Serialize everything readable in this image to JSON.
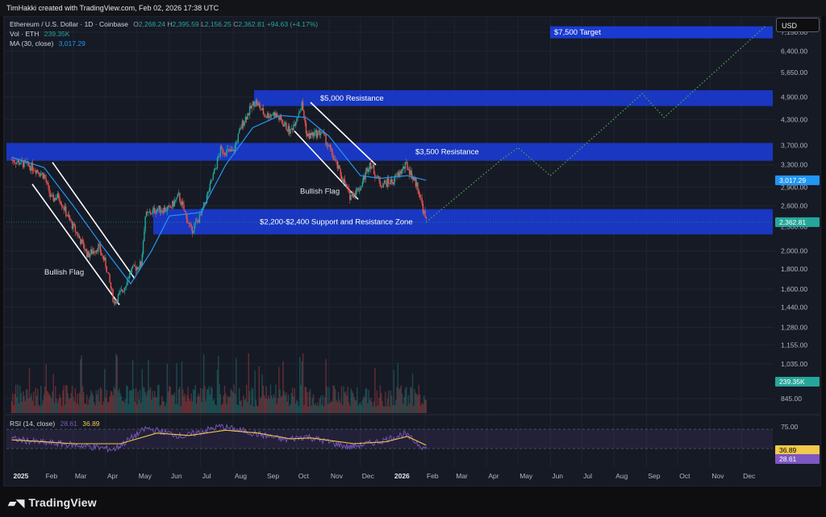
{
  "header": {
    "created_by": "TimHakki created with TradingView.com, Feb 02, 2026 17:38 UTC"
  },
  "legend": {
    "symbol": "Ethereum / U.S. Dollar · 1D · Coinbase",
    "open_label": "O",
    "open": "2,268.24",
    "high_label": "H",
    "high": "2,395.59",
    "low_label": "L",
    "low": "2,156.25",
    "close_label": "C",
    "close": "2,362.81",
    "change": "+94.63 (+4.17%)",
    "vol_label": "Vol · ETH",
    "vol": "239.35K",
    "ma_label": "MA (30, close)",
    "ma": "3,017.29"
  },
  "rsi_legend": {
    "label": "RSI (14, close)",
    "rsi": "28.61",
    "rsi_ma": "36.89"
  },
  "currency_button": "USD",
  "brand": "TradingView",
  "colors": {
    "up": "#26a69a",
    "down": "#ef5350",
    "zone": "#1a3bd1",
    "ma": "#2196f3",
    "target_path": "#4caf50",
    "rsi": "#7e57c2",
    "rsi_ma": "#f2c94c",
    "bg": "#161a25"
  },
  "chart_data": {
    "type": "candlestick",
    "symbol": "ETH/USD",
    "timeframe": "1D",
    "y_scale": "log",
    "ylim": [
      720,
      7600
    ],
    "price_ticks": [
      7150,
      6400,
      5650,
      4900,
      4300,
      3700,
      3300,
      2900,
      2600,
      2300,
      2000,
      1800,
      1600,
      1440,
      1280,
      1155,
      1035,
      845
    ],
    "price_tick_labels": [
      "7,150.00",
      "6,400.00",
      "5,650.00",
      "4,900.00",
      "4,300.00",
      "3,700.00",
      "3,300.00",
      "2,900.00",
      "2,600.00",
      "2,300.00",
      "2,000.00",
      "1,800.00",
      "1,600.00",
      "1,440.00",
      "1,280.00",
      "1,155.00",
      "1,035.00",
      "845.00"
    ],
    "x_labels": [
      "2025",
      "Feb",
      "Mar",
      "Apr",
      "May",
      "Jun",
      "Jul",
      "Aug",
      "Sep",
      "Oct",
      "Nov",
      "Dec",
      "2026",
      "Feb",
      "Mar",
      "Apr",
      "May",
      "Jun",
      "Jul",
      "Aug",
      "Sep",
      "Oct",
      "Nov",
      "Dec"
    ],
    "price_path": [
      {
        "date": "2025-01-01",
        "price": 3400
      },
      {
        "date": "2025-01-08",
        "price": 3350
      },
      {
        "date": "2025-01-15",
        "price": 3300
      },
      {
        "date": "2025-01-22",
        "price": 3250
      },
      {
        "date": "2025-02-01",
        "price": 3100
      },
      {
        "date": "2025-02-08",
        "price": 2700
      },
      {
        "date": "2025-02-15",
        "price": 2750
      },
      {
        "date": "2025-02-25",
        "price": 2400
      },
      {
        "date": "2025-03-05",
        "price": 2200
      },
      {
        "date": "2025-03-15",
        "price": 1950
      },
      {
        "date": "2025-03-25",
        "price": 2050
      },
      {
        "date": "2025-04-01",
        "price": 1850
      },
      {
        "date": "2025-04-09",
        "price": 1480
      },
      {
        "date": "2025-04-18",
        "price": 1600
      },
      {
        "date": "2025-04-25",
        "price": 1780
      },
      {
        "date": "2025-05-05",
        "price": 1850
      },
      {
        "date": "2025-05-09",
        "price": 2450
      },
      {
        "date": "2025-05-20",
        "price": 2550
      },
      {
        "date": "2025-06-01",
        "price": 2550
      },
      {
        "date": "2025-06-10",
        "price": 2750
      },
      {
        "date": "2025-06-22",
        "price": 2250
      },
      {
        "date": "2025-07-01",
        "price": 2450
      },
      {
        "date": "2025-07-10",
        "price": 2900
      },
      {
        "date": "2025-07-20",
        "price": 3600
      },
      {
        "date": "2025-08-01",
        "price": 3550
      },
      {
        "date": "2025-08-10",
        "price": 4200
      },
      {
        "date": "2025-08-22",
        "price": 4800
      },
      {
        "date": "2025-09-01",
        "price": 4400
      },
      {
        "date": "2025-09-10",
        "price": 4450
      },
      {
        "date": "2025-09-25",
        "price": 4000
      },
      {
        "date": "2025-10-06",
        "price": 4700
      },
      {
        "date": "2025-10-11",
        "price": 3900
      },
      {
        "date": "2025-10-25",
        "price": 4000
      },
      {
        "date": "2025-11-04",
        "price": 3500
      },
      {
        "date": "2025-11-21",
        "price": 2750
      },
      {
        "date": "2025-12-01",
        "price": 2900
      },
      {
        "date": "2025-12-10",
        "price": 3350
      },
      {
        "date": "2025-12-20",
        "price": 2950
      },
      {
        "date": "2026-01-01",
        "price": 3000
      },
      {
        "date": "2026-01-14",
        "price": 3300
      },
      {
        "date": "2026-01-25",
        "price": 2900
      },
      {
        "date": "2026-02-02",
        "price": 2362.81
      }
    ],
    "ma30_path": [
      {
        "date": "2025-01-01",
        "price": 3450
      },
      {
        "date": "2025-02-01",
        "price": 3250
      },
      {
        "date": "2025-03-01",
        "price": 2600
      },
      {
        "date": "2025-04-01",
        "price": 2000
      },
      {
        "date": "2025-04-25",
        "price": 1650
      },
      {
        "date": "2025-05-15",
        "price": 2000
      },
      {
        "date": "2025-06-01",
        "price": 2450
      },
      {
        "date": "2025-07-01",
        "price": 2500
      },
      {
        "date": "2025-07-25",
        "price": 3300
      },
      {
        "date": "2025-08-20",
        "price": 4100
      },
      {
        "date": "2025-09-15",
        "price": 4400
      },
      {
        "date": "2025-10-10",
        "price": 4350
      },
      {
        "date": "2025-11-01",
        "price": 3900
      },
      {
        "date": "2025-12-01",
        "price": 3100
      },
      {
        "date": "2025-12-20",
        "price": 3050
      },
      {
        "date": "2026-01-15",
        "price": 3100
      },
      {
        "date": "2026-02-02",
        "price": 3017.29
      }
    ],
    "resistance_zones": [
      {
        "label": "$5,000 Resistance",
        "low": 4650,
        "high": 5100
      },
      {
        "label": "$3,500 Resistance",
        "low": 3380,
        "high": 3750
      },
      {
        "label": "$2,200-$2,400 Support and Resistance Zone",
        "low": 2200,
        "high": 2550
      }
    ],
    "target_zone": {
      "label": "$7,500 Target",
      "low": 6900,
      "high": 7400
    },
    "projection_path": [
      {
        "date": "2026-02-02",
        "price": 2362.81
      },
      {
        "date": "2026-04-15",
        "price": 3400
      },
      {
        "date": "2026-05-01",
        "price": 3650
      },
      {
        "date": "2026-06-01",
        "price": 3100
      },
      {
        "date": "2026-08-28",
        "price": 5000
      },
      {
        "date": "2026-09-18",
        "price": 4350
      },
      {
        "date": "2026-12-25",
        "price": 7450
      }
    ],
    "annotations": [
      {
        "text": "Bullish Flag"
      },
      {
        "text": "Bullish Flag"
      }
    ],
    "price_labels": [
      {
        "name": "ma30",
        "value": 3017.29,
        "text": "3,017.29"
      },
      {
        "name": "close",
        "value": 2362.81,
        "text": "2,362.81"
      },
      {
        "name": "volume",
        "value": 239.35,
        "text": "239.35K"
      }
    ],
    "rsi": {
      "period": 14,
      "current": 28.61,
      "ma_current": 36.89,
      "upper_band": 70,
      "lower_band": 30,
      "tick_labels": [
        "75.00"
      ],
      "path": [
        {
          "date": "2025-01-01",
          "value": 50
        },
        {
          "date": "2025-02-01",
          "value": 42
        },
        {
          "date": "2025-03-01",
          "value": 38
        },
        {
          "date": "2025-04-09",
          "value": 28
        },
        {
          "date": "2025-05-10",
          "value": 72
        },
        {
          "date": "2025-06-15",
          "value": 55
        },
        {
          "date": "2025-07-20",
          "value": 76
        },
        {
          "date": "2025-08-20",
          "value": 62
        },
        {
          "date": "2025-09-20",
          "value": 48
        },
        {
          "date": "2025-10-10",
          "value": 55
        },
        {
          "date": "2025-11-20",
          "value": 33
        },
        {
          "date": "2025-12-20",
          "value": 45
        },
        {
          "date": "2026-01-12",
          "value": 60
        },
        {
          "date": "2026-02-02",
          "value": 28.61
        }
      ],
      "ma_path": [
        {
          "date": "2025-01-01",
          "value": 48
        },
        {
          "date": "2025-02-01",
          "value": 44
        },
        {
          "date": "2025-03-01",
          "value": 40
        },
        {
          "date": "2025-04-15",
          "value": 40
        },
        {
          "date": "2025-05-20",
          "value": 62
        },
        {
          "date": "2025-06-20",
          "value": 57
        },
        {
          "date": "2025-07-25",
          "value": 68
        },
        {
          "date": "2025-08-25",
          "value": 62
        },
        {
          "date": "2025-09-25",
          "value": 50
        },
        {
          "date": "2025-10-15",
          "value": 52
        },
        {
          "date": "2025-11-25",
          "value": 40
        },
        {
          "date": "2025-12-25",
          "value": 44
        },
        {
          "date": "2026-01-15",
          "value": 55
        },
        {
          "date": "2026-02-02",
          "value": 36.89
        }
      ]
    }
  }
}
